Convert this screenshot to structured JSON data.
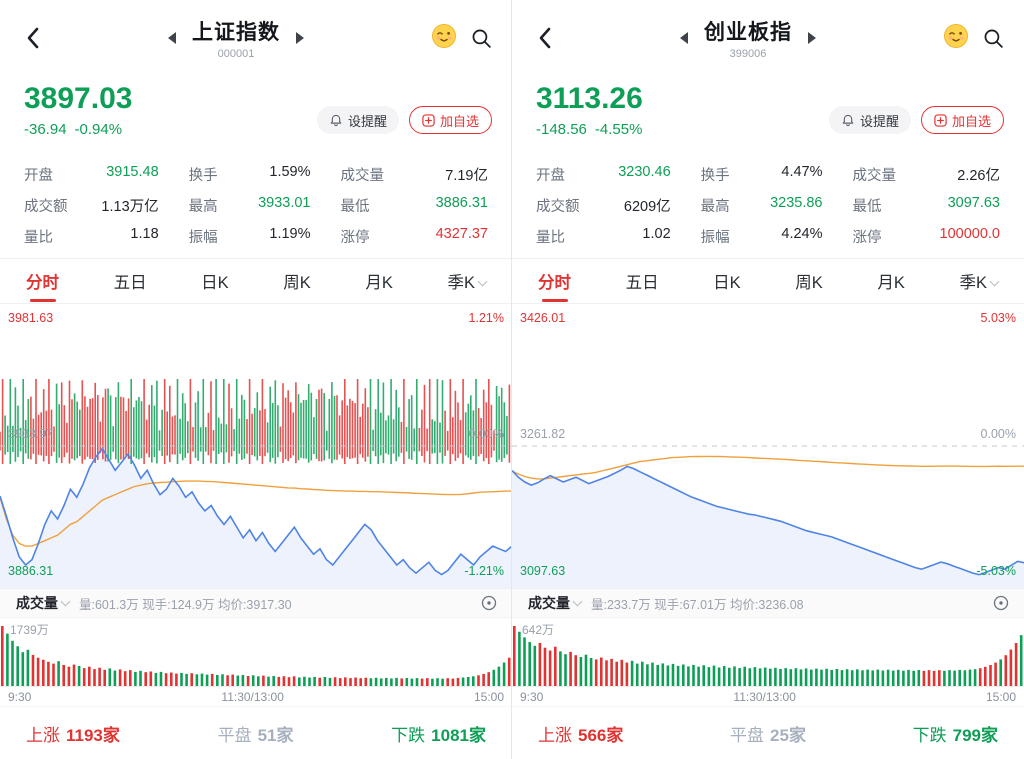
{
  "theme": {
    "red": "#e23333",
    "green": "#0e9f56",
    "blue": "#4f84e6",
    "orange": "#efa03c",
    "area_blue": "#4f84e6"
  },
  "panels": [
    {
      "header": {
        "title": "上证指数",
        "code": "000001"
      },
      "price": {
        "value": "3897.03",
        "change": "-36.94",
        "change_pct": "-0.94%"
      },
      "buttons": {
        "alert": "设提醒",
        "add": "加自选"
      },
      "stats": [
        {
          "label": "开盘",
          "value": "3915.48"
        },
        {
          "label": "换手",
          "value": "1.59%"
        },
        {
          "label": "成交量",
          "value": "7.19亿"
        },
        {
          "label": "成交额",
          "value": "1.13万亿"
        },
        {
          "label": "最高",
          "value": "3933.01"
        },
        {
          "label": "最低",
          "value": "3886.31"
        },
        {
          "label": "量比",
          "value": "1.18"
        },
        {
          "label": "振幅",
          "value": "1.19%"
        },
        {
          "label": "涨停",
          "value": "4327.37"
        }
      ],
      "tabs": [
        "分时",
        "五日",
        "日K",
        "周K",
        "月K",
        "季K"
      ],
      "active_tab": 0,
      "volume_header": {
        "title": "成交量",
        "stats": "量:601.3万 现手:124.9万 均价:3917.30"
      },
      "footer": {
        "up_label": "上涨",
        "up_value": "1193家",
        "flat_label": "平盘",
        "flat_value": "51家",
        "down_label": "下跌",
        "down_value": "1081家"
      },
      "chart_data": {
        "type": "line",
        "ylim": [
          3886.31,
          3981.63
        ],
        "prev_close": 3933.97,
        "mid_bars": true,
        "labels": {
          "tl": "3981.63",
          "tr": "1.21%",
          "ml": "3933.97",
          "mr": "0.00%",
          "bl": "3886.31",
          "br": "-1.21%"
        },
        "times": [
          "9:30",
          "11:30/13:00",
          "15:00"
        ],
        "volume_max_label": "1739万",
        "series": [
          {
            "name": "price",
            "values": [
              3915.5,
              3908,
              3900,
              3893,
              3890,
              3892,
              3898,
              3905,
              3910,
              3907,
              3912,
              3918,
              3915,
              3920,
              3926,
              3930,
              3933,
              3929,
              3925,
              3928,
              3931,
              3927,
              3922,
              3925,
              3920,
              3916,
              3918,
              3922,
              3919,
              3915,
              3917,
              3913,
              3910,
              3912,
              3908,
              3905,
              3908,
              3904,
              3900,
              3903,
              3899,
              3902,
              3898,
              3895,
              3898,
              3901,
              3904,
              3900,
              3897,
              3894,
              3896,
              3892,
              3890,
              3893,
              3896,
              3899,
              3902,
              3905,
              3903,
              3899,
              3896,
              3893,
              3890,
              3892,
              3889,
              3887,
              3889,
              3891,
              3888,
              3886.5,
              3888,
              3891,
              3894,
              3892,
              3890,
              3893,
              3895,
              3897,
              3896,
              3895,
              3897
            ]
          },
          {
            "name": "avg",
            "values": [
              3915,
              3907,
              3901,
              3898,
              3897,
              3897,
              3898,
              3899,
              3900,
              3901,
              3903,
              3905,
              3906,
              3908,
              3910,
              3912,
              3914,
              3915,
              3916,
              3917,
              3918,
              3919,
              3919.5,
              3920,
              3920.3,
              3920.5,
              3920.6,
              3920.8,
              3920.9,
              3921,
              3921,
              3921,
              3920.9,
              3920.8,
              3920.7,
              3920.5,
              3920.3,
              3920.1,
              3919.9,
              3919.7,
              3919.5,
              3919.3,
              3919.1,
              3918.9,
              3918.7,
              3918.5,
              3918.4,
              3918.2,
              3918.1,
              3917.9,
              3917.8,
              3917.6,
              3917.5,
              3917.4,
              3917.3,
              3917.3,
              3917.2,
              3917.2,
              3917.1,
              3917.1,
              3917,
              3916.9,
              3916.8,
              3916.7,
              3916.6,
              3916.5,
              3916.4,
              3916.3,
              3916.2,
              3916.1,
              3916,
              3916,
              3916.1,
              3916.3,
              3916.6,
              3916.9,
              3917,
              3917.1,
              3917.2,
              3917.3,
              3917.3
            ]
          }
        ],
        "volume": [
          1739,
          1520,
          1310,
          1150,
          980,
          1050,
          900,
          820,
          760,
          700,
          650,
          720,
          610,
          560,
          620,
          580,
          520,
          560,
          490,
          530,
          470,
          510,
          450,
          480,
          430,
          460,
          410,
          440,
          400,
          420,
          380,
          410,
          370,
          390,
          360,
          380,
          350,
          370,
          340,
          360,
          330,
          350,
          320,
          340,
          310,
          330,
          300,
          320,
          290,
          310,
          280,
          300,
          270,
          290,
          265,
          285,
          255,
          280,
          250,
          270,
          245,
          265,
          240,
          260,
          235,
          255,
          230,
          250,
          228,
          245,
          225,
          240,
          222,
          238,
          220,
          236,
          218,
          235,
          216,
          232,
          215,
          230,
          214,
          228,
          213,
          226,
          212,
          225,
          215,
          235,
          245,
          260,
          280,
          310,
          350,
          400,
          470,
          560,
          680,
          820
        ]
      }
    },
    {
      "header": {
        "title": "创业板指",
        "code": "399006"
      },
      "price": {
        "value": "3113.26",
        "change": "-148.56",
        "change_pct": "-4.55%"
      },
      "buttons": {
        "alert": "设提醒",
        "add": "加自选"
      },
      "stats": [
        {
          "label": "开盘",
          "value": "3230.46"
        },
        {
          "label": "换手",
          "value": "4.47%"
        },
        {
          "label": "成交量",
          "value": "2.26亿"
        },
        {
          "label": "成交额",
          "value": "6209亿"
        },
        {
          "label": "最高",
          "value": "3235.86"
        },
        {
          "label": "最低",
          "value": "3097.63"
        },
        {
          "label": "量比",
          "value": "1.02"
        },
        {
          "label": "振幅",
          "value": "4.24%"
        },
        {
          "label": "涨停",
          "value": "100000.0"
        }
      ],
      "tabs": [
        "分时",
        "五日",
        "日K",
        "周K",
        "月K",
        "季K"
      ],
      "active_tab": 0,
      "volume_header": {
        "title": "成交量",
        "stats": "量:233.7万 现手:67.01万 均价:3236.08"
      },
      "footer": {
        "up_label": "上涨",
        "up_value": "566家",
        "flat_label": "平盘",
        "flat_value": "25家",
        "down_label": "下跌",
        "down_value": "799家"
      },
      "chart_data": {
        "type": "line",
        "ylim": [
          3097.63,
          3426.01
        ],
        "prev_close": 3261.82,
        "mid_bars": false,
        "labels": {
          "tl": "3426.01",
          "tr": "5.03%",
          "ml": "3261.82",
          "mr": "0.00%",
          "bl": "3097.63",
          "br": "-5.03%"
        },
        "times": [
          "9:30",
          "11:30/13:00",
          "15:00"
        ],
        "volume_max_label": "642万",
        "series": [
          {
            "name": "price",
            "values": [
              3230.5,
              3222,
              3216,
              3212,
              3215,
              3220,
              3224,
              3220,
              3216,
              3219,
              3222,
              3218,
              3214,
              3217,
              3220,
              3223,
              3227,
              3231,
              3235.9,
              3233,
              3229,
              3225,
              3221,
              3217,
              3213,
              3209,
              3205,
              3201,
              3197,
              3194,
              3191,
              3188,
              3185,
              3183,
              3181,
              3179,
              3177,
              3175,
              3174,
              3172,
              3170,
              3168,
              3166,
              3163,
              3160,
              3157,
              3154,
              3152,
              3150,
              3148,
              3146,
              3143,
              3140,
              3137,
              3134,
              3131,
              3128,
              3125,
              3122,
              3119,
              3116,
              3113,
              3110,
              3107,
              3105,
              3108,
              3111,
              3114,
              3112,
              3109,
              3106,
              3103,
              3100,
              3098,
              3101,
              3104,
              3107,
              3105,
              3110,
              3115,
              3113.3
            ]
          },
          {
            "name": "avg",
            "values": [
              3230,
              3226,
              3223,
              3221,
              3220,
              3220,
              3221,
              3222,
              3223,
              3224,
              3225,
              3226,
              3227,
              3228,
              3230,
              3232,
              3234,
              3236,
              3238,
              3240,
              3242,
              3243,
              3244,
              3245,
              3246,
              3247,
              3247.5,
              3248,
              3248.3,
              3248.5,
              3248.6,
              3248.6,
              3248.5,
              3248.3,
              3248,
              3247.7,
              3247.4,
              3247,
              3246.6,
              3246.2,
              3245.8,
              3245.4,
              3245,
              3244.5,
              3244,
              3243.5,
              3243,
              3242.5,
              3242,
              3241.5,
              3241,
              3240.5,
              3240,
              3239.5,
              3239,
              3238.6,
              3238.2,
              3237.8,
              3237.4,
              3237,
              3236.8,
              3236.6,
              3236.4,
              3236.2,
              3236,
              3236,
              3236.1,
              3236.2,
              3236.3,
              3236.2,
              3236.1,
              3236,
              3235.9,
              3235.8,
              3235.9,
              3236,
              3236.1,
              3236,
              3236,
              3236.1,
              3236.1
            ]
          }
        ],
        "volume": [
          642,
          580,
          520,
          470,
          430,
          460,
          410,
          380,
          420,
          370,
          340,
          365,
          330,
          310,
          335,
          300,
          285,
          305,
          275,
          290,
          260,
          280,
          250,
          270,
          240,
          260,
          232,
          250,
          226,
          242,
          220,
          236,
          215,
          230,
          210,
          226,
          206,
          222,
          202,
          218,
          198,
          214,
          195,
          210,
          192,
          206,
          190,
          202,
          188,
          198,
          185,
          195,
          182,
          192,
          180,
          190,
          178,
          188,
          176,
          186,
          174,
          184,
          172,
          182,
          170,
          180,
          169,
          178,
          168,
          176,
          167,
          175,
          166,
          174,
          165,
          173,
          164,
          172,
          163,
          171,
          162,
          170,
          162,
          169,
          163,
          170,
          165,
          172,
          168,
          176,
          180,
          190,
          205,
          225,
          250,
          285,
          330,
          390,
          460,
          545
        ]
      }
    }
  ]
}
